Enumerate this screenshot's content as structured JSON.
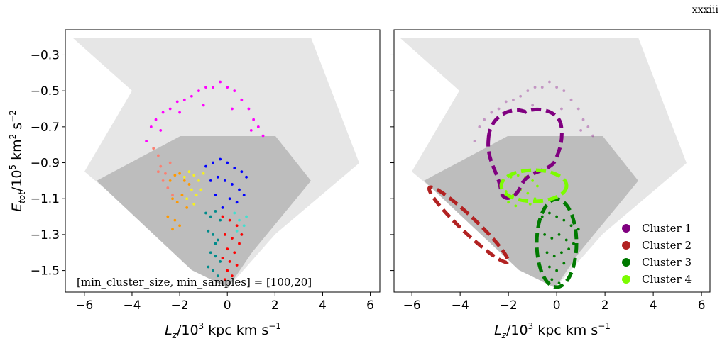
{
  "page_label": "xxxiii",
  "chart_data": [
    {
      "type": "scatter",
      "xlim": [
        -6.8,
        6.4
      ],
      "ylim": [
        -1.62,
        -0.16
      ],
      "xticks": [
        {
          "value": -6,
          "label": "−6"
        },
        {
          "value": -4,
          "label": "−4"
        },
        {
          "value": -2,
          "label": "−2"
        },
        0,
        2,
        4,
        6
      ],
      "yticks": [
        {
          "value": -0.3,
          "label": "−0.3"
        },
        {
          "value": -0.5,
          "label": "−0.5"
        },
        {
          "value": -0.7,
          "label": "−0.7"
        },
        {
          "value": -0.9,
          "label": "−0.9"
        },
        {
          "value": -1.1,
          "label": "−1.1"
        },
        {
          "value": -1.3,
          "label": "−1.3"
        },
        {
          "value": -1.5,
          "label": "−1.5"
        }
      ],
      "xlabel_parts": [
        "L",
        "z",
        "/10",
        "3",
        " kpc km s",
        "−1"
      ],
      "ylabel_parts": [
        "E",
        "tot",
        "/10",
        "5",
        " km",
        "2",
        " s",
        "−2"
      ],
      "annotation": "[min_cluster_size, min_samples] = [100,20]",
      "series": [
        {
          "color": "#ff00ff",
          "x": [
            -3.4,
            -3.2,
            -3.0,
            -2.7,
            -2.4,
            -2.1,
            -1.8,
            -1.5,
            -1.2,
            -0.9,
            -0.6,
            -0.3,
            0.0,
            0.3,
            0.6,
            0.9,
            1.1,
            1.3,
            1.5,
            -2.0,
            -1.0,
            0.2,
            -2.8,
            1.0
          ],
          "y": [
            -0.78,
            -0.7,
            -0.66,
            -0.62,
            -0.6,
            -0.56,
            -0.55,
            -0.53,
            -0.5,
            -0.48,
            -0.48,
            -0.45,
            -0.48,
            -0.5,
            -0.55,
            -0.6,
            -0.66,
            -0.7,
            -0.75,
            -0.62,
            -0.58,
            -0.6,
            -0.72,
            -0.72
          ]
        },
        {
          "color": "#fa8072",
          "x": [
            -3.1,
            -2.9,
            -2.8,
            -2.6,
            -2.7,
            -2.5,
            -2.4,
            -2.9,
            -2.3
          ],
          "y": [
            -0.82,
            -0.86,
            -0.92,
            -0.96,
            -1.0,
            -1.04,
            -0.9,
            -0.95,
            -1.08
          ]
        },
        {
          "color": "#ff9900",
          "x": [
            -2.4,
            -2.2,
            -2.0,
            -1.8,
            -2.3,
            -2.1,
            -1.9,
            -2.5,
            -2.2,
            -1.7,
            -2.0,
            -2.3,
            -1.6
          ],
          "y": [
            -1.0,
            -0.97,
            -0.96,
            -1.0,
            -1.1,
            -1.12,
            -1.08,
            -1.2,
            -1.22,
            -1.15,
            -1.25,
            -1.27,
            -1.02
          ]
        },
        {
          "color": "#f5f020",
          "x": [
            -1.8,
            -1.6,
            -1.4,
            -1.2,
            -1.0,
            -1.5,
            -1.3,
            -1.7,
            -1.1,
            -1.4
          ],
          "y": [
            -0.98,
            -0.95,
            -0.97,
            -1.0,
            -0.96,
            -1.05,
            -1.08,
            -1.1,
            -1.05,
            -1.13
          ]
        },
        {
          "color": "#0000ff",
          "x": [
            -0.9,
            -0.6,
            -0.3,
            0.0,
            0.3,
            0.6,
            0.8,
            -0.7,
            -0.4,
            -0.1,
            0.2,
            0.5,
            -0.5,
            0.1,
            0.4,
            -0.2,
            0.7
          ],
          "y": [
            -0.92,
            -0.9,
            -0.88,
            -0.9,
            -0.93,
            -0.95,
            -0.98,
            -1.0,
            -0.98,
            -1.0,
            -1.02,
            -1.05,
            -1.08,
            -1.1,
            -1.12,
            -1.15,
            -1.08
          ]
        },
        {
          "color": "#40e0d0",
          "x": [
            0.3,
            0.5,
            0.7,
            0.6,
            0.4,
            0.8,
            0.2
          ],
          "y": [
            -1.18,
            -1.22,
            -1.25,
            -1.3,
            -1.28,
            -1.2,
            -1.32
          ]
        },
        {
          "color": "#008b8b",
          "x": [
            -0.9,
            -0.7,
            -0.5,
            -0.3,
            -0.8,
            -0.6,
            -0.4,
            -0.7,
            -0.5,
            -0.3,
            -0.6,
            -0.4,
            -0.8,
            -0.5
          ],
          "y": [
            -1.18,
            -1.2,
            -1.17,
            -1.22,
            -1.28,
            -1.3,
            -1.33,
            -1.4,
            -1.42,
            -1.45,
            -1.5,
            -1.53,
            -1.48,
            -1.35
          ]
        },
        {
          "color": "#ff0000",
          "x": [
            -0.2,
            0.1,
            0.4,
            -0.1,
            0.2,
            0.5,
            0.0,
            0.3,
            -0.2,
            0.1,
            0.4,
            0.0,
            0.2,
            0.6,
            -0.1
          ],
          "y": [
            -1.2,
            -1.22,
            -1.25,
            -1.3,
            -1.32,
            -1.35,
            -1.38,
            -1.4,
            -1.43,
            -1.45,
            -1.47,
            -1.5,
            -1.53,
            -1.3,
            -1.55
          ]
        }
      ]
    },
    {
      "type": "scatter",
      "xlim": [
        -6.74,
        6.35
      ],
      "ylim": [
        -1.62,
        -0.16
      ],
      "xticks": [
        {
          "value": -6,
          "label": "−6"
        },
        {
          "value": -4,
          "label": "−4"
        },
        {
          "value": -2,
          "label": "−2"
        },
        0,
        2,
        4,
        6
      ],
      "yticks": [
        -0.3,
        -0.5,
        -0.7,
        -0.9,
        -1.1,
        -1.3,
        -1.5
      ],
      "xlabel_parts": [
        "L",
        "z",
        "/10",
        "3",
        " kpc km s",
        "−1"
      ],
      "legend": "lower right",
      "series": [
        {
          "name": "Cluster 1",
          "color": "#800080",
          "alpha": 0.35,
          "x": [
            -3.4,
            -3.2,
            -3.0,
            -2.7,
            -2.4,
            -2.1,
            -1.8,
            -1.5,
            -1.2,
            -0.9,
            -0.6,
            -0.3,
            0.0,
            0.3,
            0.6,
            0.9,
            1.1,
            1.3,
            1.5,
            -2.0,
            -1.0,
            0.2,
            -2.8,
            1.0
          ],
          "y": [
            -0.78,
            -0.7,
            -0.66,
            -0.62,
            -0.6,
            -0.56,
            -0.55,
            -0.53,
            -0.5,
            -0.48,
            -0.48,
            -0.45,
            -0.48,
            -0.5,
            -0.55,
            -0.6,
            -0.66,
            -0.7,
            -0.75,
            -0.62,
            -0.58,
            -0.6,
            -0.72,
            -0.72
          ]
        },
        {
          "name": "Cluster 2",
          "color": "#b22222",
          "x": [],
          "y": []
        },
        {
          "name": "Cluster 3",
          "color": "#007a00",
          "x": [
            -0.6,
            -0.3,
            0.0,
            0.3,
            0.6,
            0.9,
            -0.5,
            -0.2,
            0.1,
            0.4,
            0.7,
            -0.4,
            -0.1,
            0.2,
            0.5,
            -0.3,
            0.0,
            0.3,
            -0.2,
            0.1
          ],
          "y": [
            -1.2,
            -1.18,
            -1.2,
            -1.22,
            -1.25,
            -1.27,
            -1.3,
            -1.32,
            -1.3,
            -1.33,
            -1.35,
            -1.4,
            -1.42,
            -1.4,
            -1.38,
            -1.48,
            -1.5,
            -1.46,
            -1.55,
            -1.57
          ]
        },
        {
          "name": "Cluster 4",
          "color": "#7cfc00",
          "x": [
            -2.2,
            -1.9,
            -1.6,
            -1.3,
            -1.0,
            -0.8,
            -2.1,
            -1.8,
            -1.5,
            -1.2,
            -0.9,
            -2.0,
            -1.7,
            -1.4,
            -1.1
          ],
          "y": [
            -1.0,
            -0.98,
            -0.97,
            -0.98,
            -1.0,
            -1.03,
            -1.06,
            -1.08,
            -1.05,
            -1.07,
            -1.1,
            -1.12,
            -1.14,
            -1.11,
            -1.13
          ]
        }
      ]
    }
  ]
}
